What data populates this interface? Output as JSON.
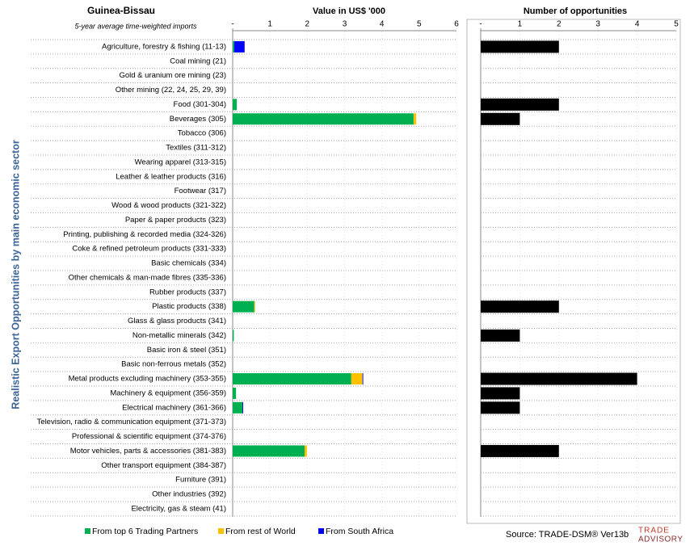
{
  "chart_data": [
    {
      "type": "stacked-bar-horizontal",
      "title": "Guinea-Bissau",
      "subtitle": "5-year average time-weighted imports",
      "xlabel": "Value in US$ '000",
      "ylabel": "Realistic Export Opportunities by main economic sector",
      "categories": [
        "Agriculture, forestry & fishing (11-13)",
        "Coal mining (21)",
        "Gold & uranium ore mining (23)",
        "Other mining (22, 24, 25, 29, 39)",
        "Food (301-304)",
        "Beverages (305)",
        "Tobacco (306)",
        "Textiles (311-312)",
        "Wearing apparel (313-315)",
        "Leather & leather products (316)",
        "Footwear (317)",
        "Wood & wood products (321-322)",
        "Paper & paper products (323)",
        "Printing, publishing & recorded media (324-326)",
        "Coke & refined petroleum products (331-333)",
        "Basic chemicals (334)",
        "Other chemicals & man-made fibres (335-336)",
        "Rubber products (337)",
        "Plastic products (338)",
        "Glass & glass products (341)",
        "Non-metallic minerals (342)",
        "Basic iron & steel (351)",
        "Basic non-ferrous metals (352)",
        "Metal products excluding machinery (353-355)",
        "Machinery & equipment (356-359)",
        "Electrical machinery (361-366)",
        "Television, radio & communication equipment (371-373)",
        "Professional & scientific equipment (374-376)",
        "Motor vehicles, parts & accessories (381-383)",
        "Other transport equipment (384-387)",
        "Furniture (391)",
        "Other industries (392)",
        "Electricity, gas & steam (41)"
      ],
      "series": [
        {
          "name": "From top 6 Trading Partners",
          "color": "#00b050",
          "values": [
            0.04,
            0,
            0,
            0,
            0.11,
            4.85,
            0,
            0,
            0,
            0,
            0,
            0,
            0,
            0,
            0,
            0,
            0,
            0,
            0.58,
            0,
            0.03,
            0,
            0,
            3.18,
            0.09,
            0.26,
            0,
            0,
            1.93,
            0,
            0,
            0,
            0
          ]
        },
        {
          "name": "From rest of World",
          "color": "#ffc000",
          "values": [
            0,
            0,
            0,
            0,
            0,
            0.07,
            0,
            0,
            0,
            0,
            0,
            0,
            0,
            0,
            0,
            0,
            0,
            0,
            0.02,
            0,
            0,
            0,
            0,
            0.3,
            0,
            0,
            0,
            0,
            0.06,
            0,
            0,
            0,
            0
          ]
        },
        {
          "name": "From South Africa",
          "color": "#0000ff",
          "values": [
            0.28,
            0,
            0,
            0,
            0,
            0,
            0,
            0,
            0,
            0,
            0,
            0,
            0,
            0,
            0,
            0,
            0,
            0,
            0,
            0,
            0,
            0,
            0,
            0.02,
            0,
            0.02,
            0,
            0,
            0,
            0,
            0,
            0,
            0
          ]
        }
      ],
      "xlim": [
        0,
        6
      ],
      "xticks": [
        {
          "value": 0,
          "label": "-"
        },
        1,
        2,
        3,
        4,
        5,
        6
      ],
      "legend": "bottom",
      "source": "Source: TRADE-DSM® Ver13b",
      "logo": [
        "TRADE",
        "ADVISORY"
      ]
    },
    {
      "type": "bar-horizontal",
      "xlabel": "Number of opportunities",
      "color": "#000000",
      "values": [
        2,
        0,
        0,
        0,
        2,
        1,
        0,
        0,
        0,
        0,
        0,
        0,
        0,
        0,
        0,
        0,
        0,
        0,
        2,
        0,
        1,
        0,
        0,
        4,
        1,
        1,
        0,
        0,
        2,
        0,
        0,
        0,
        0
      ],
      "xlim": [
        0,
        5
      ],
      "xticks": [
        {
          "value": 0,
          "label": "-"
        },
        1,
        2,
        3,
        4,
        5
      ]
    }
  ]
}
